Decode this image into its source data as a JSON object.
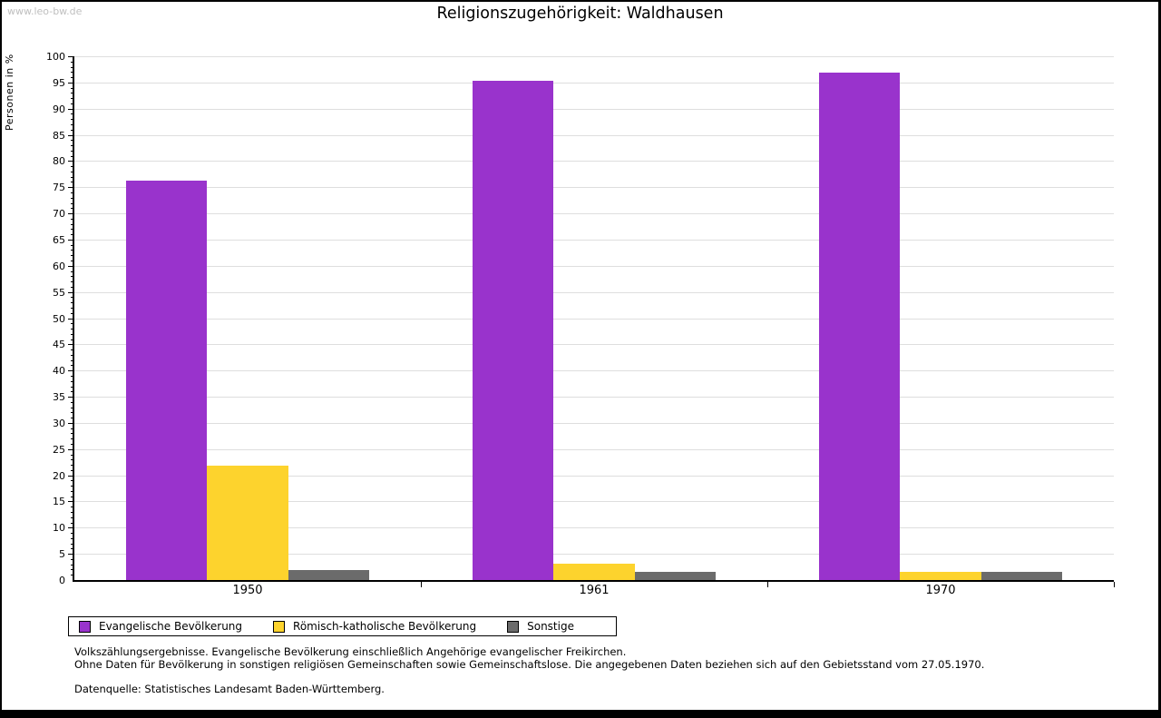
{
  "watermark": "www.leo-bw.de",
  "chart_data": {
    "type": "bar",
    "title": "Religionszugehörigkeit: Waldhausen",
    "ylabel": "Personen in %",
    "xlabel": "",
    "ylim": [
      0,
      100
    ],
    "ytick_step": 5,
    "minor_tick_step": 1,
    "grid": true,
    "legend_position": "bottom-left",
    "categories": [
      "1950",
      "1961",
      "1970"
    ],
    "series": [
      {
        "name": "Evangelische Bevölkerung",
        "color": "#9933CC",
        "values": [
          76.3,
          95.4,
          96.8
        ]
      },
      {
        "name": "Römisch-katholische Bevölkerung",
        "color": "#FDD32D",
        "values": [
          21.8,
          3.1,
          1.6
        ]
      },
      {
        "name": "Sonstige",
        "color": "#6B6B6B",
        "values": [
          1.9,
          1.5,
          1.6
        ]
      }
    ]
  },
  "footer": {
    "line1": "Volkszählungsergebnisse. Evangelische Bevölkerung einschließlich Angehörige evangelischer Freikirchen.",
    "line2": "Ohne Daten für Bevölkerung in sonstigen religiösen Gemeinschaften sowie Gemeinschaftslose. Die angegebenen Daten beziehen sich auf den Gebietsstand vom 27.05.1970.",
    "line3": "Datenquelle: Statistisches Landesamt Baden-Württemberg."
  }
}
